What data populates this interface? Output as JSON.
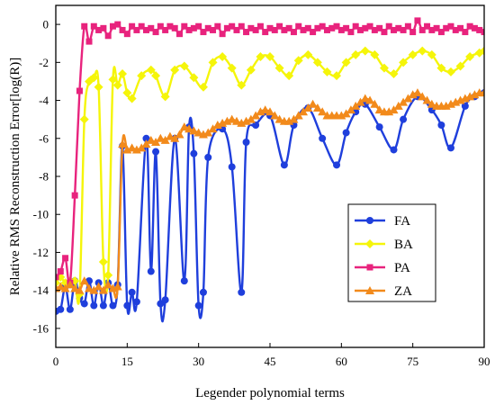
{
  "chart_data": {
    "type": "line",
    "xlabel": "Legender polynomial terms",
    "ylabel": "Relative RMS Reconstruction Error[log(R)]",
    "xlim": [
      0,
      90
    ],
    "ylim": [
      -17,
      1
    ],
    "xticks": [
      0,
      15,
      30,
      45,
      60,
      75,
      90
    ],
    "yticks": [
      0,
      -2,
      -4,
      -6,
      -8,
      -10,
      -12,
      -14,
      -16
    ],
    "legend_position": "lower-right",
    "series": [
      {
        "name": "FA",
        "color": "#1f3fdc",
        "marker": "circle",
        "points": [
          [
            0,
            -15.1
          ],
          [
            1,
            -15.0
          ],
          [
            2,
            -13.8
          ],
          [
            3,
            -15.0
          ],
          [
            4,
            -13.5
          ],
          [
            5,
            -14.4
          ],
          [
            6,
            -14.7
          ],
          [
            7,
            -13.5
          ],
          [
            8,
            -14.8
          ],
          [
            9,
            -13.6
          ],
          [
            10,
            -14.8
          ],
          [
            11,
            -13.6
          ],
          [
            12,
            -14.8
          ],
          [
            13,
            -13.7
          ],
          [
            14,
            -6.4
          ],
          [
            15,
            -14.8
          ],
          [
            16,
            -14.1
          ],
          [
            17,
            -14.6
          ],
          [
            19,
            -6.0
          ],
          [
            20,
            -13.0
          ],
          [
            21,
            -6.7
          ],
          [
            22,
            -14.7
          ],
          [
            23,
            -14.5
          ],
          [
            25,
            -6.0
          ],
          [
            27,
            -13.5
          ],
          [
            28,
            -5.4
          ],
          [
            29,
            -6.8
          ],
          [
            30,
            -14.8
          ],
          [
            31,
            -14.1
          ],
          [
            32,
            -7.0
          ],
          [
            35,
            -5.5
          ],
          [
            37,
            -7.5
          ],
          [
            39,
            -14.1
          ],
          [
            40,
            -6.2
          ],
          [
            42,
            -5.3
          ],
          [
            45,
            -4.8
          ],
          [
            48,
            -7.4
          ],
          [
            50,
            -5.3
          ],
          [
            53,
            -4.4
          ],
          [
            56,
            -6.0
          ],
          [
            59,
            -7.4
          ],
          [
            61,
            -5.7
          ],
          [
            63,
            -4.6
          ],
          [
            65,
            -4.2
          ],
          [
            68,
            -5.4
          ],
          [
            71,
            -6.6
          ],
          [
            73,
            -5.0
          ],
          [
            76,
            -3.8
          ],
          [
            79,
            -4.5
          ],
          [
            81,
            -5.3
          ],
          [
            83,
            -6.5
          ],
          [
            86,
            -4.3
          ],
          [
            88,
            -3.8
          ],
          [
            90,
            -3.6
          ]
        ]
      },
      {
        "name": "BA",
        "color": "#f5f50a",
        "marker": "diamond",
        "points": [
          [
            0,
            -13.6
          ],
          [
            1,
            -13.3
          ],
          [
            2,
            -13.6
          ],
          [
            3,
            -13.5
          ],
          [
            4,
            -13.5
          ],
          [
            5,
            -14.2
          ],
          [
            6,
            -5.0
          ],
          [
            7,
            -3.0
          ],
          [
            8,
            -2.8
          ],
          [
            9,
            -3.3
          ],
          [
            10,
            -12.5
          ],
          [
            11,
            -13.2
          ],
          [
            12,
            -2.9
          ],
          [
            13,
            -3.2
          ],
          [
            14,
            -2.6
          ],
          [
            15,
            -3.6
          ],
          [
            16,
            -3.9
          ],
          [
            18,
            -2.7
          ],
          [
            20,
            -2.4
          ],
          [
            21,
            -2.7
          ],
          [
            23,
            -3.8
          ],
          [
            25,
            -2.4
          ],
          [
            27,
            -2.2
          ],
          [
            29,
            -2.8
          ],
          [
            31,
            -3.3
          ],
          [
            33,
            -2.0
          ],
          [
            35,
            -1.7
          ],
          [
            37,
            -2.3
          ],
          [
            39,
            -3.2
          ],
          [
            41,
            -2.4
          ],
          [
            43,
            -1.7
          ],
          [
            45,
            -1.7
          ],
          [
            47,
            -2.3
          ],
          [
            49,
            -2.7
          ],
          [
            51,
            -1.9
          ],
          [
            53,
            -1.6
          ],
          [
            55,
            -2.0
          ],
          [
            57,
            -2.5
          ],
          [
            59,
            -2.7
          ],
          [
            61,
            -2.0
          ],
          [
            63,
            -1.6
          ],
          [
            65,
            -1.4
          ],
          [
            67,
            -1.6
          ],
          [
            69,
            -2.3
          ],
          [
            71,
            -2.6
          ],
          [
            73,
            -2.0
          ],
          [
            75,
            -1.6
          ],
          [
            77,
            -1.4
          ],
          [
            79,
            -1.6
          ],
          [
            81,
            -2.3
          ],
          [
            83,
            -2.5
          ],
          [
            85,
            -2.2
          ],
          [
            87,
            -1.7
          ],
          [
            89,
            -1.5
          ],
          [
            90,
            -1.4
          ]
        ]
      },
      {
        "name": "PA",
        "color": "#e8237d",
        "marker": "square",
        "points": [
          [
            0,
            -13.3
          ],
          [
            1,
            -13.0
          ],
          [
            2,
            -12.3
          ],
          [
            3,
            -13.6
          ],
          [
            4,
            -9.0
          ],
          [
            5,
            -3.5
          ],
          [
            6,
            -0.1
          ],
          [
            7,
            -0.9
          ],
          [
            8,
            -0.1
          ],
          [
            9,
            -0.3
          ],
          [
            10,
            -0.2
          ],
          [
            11,
            -0.6
          ],
          [
            12,
            -0.1
          ],
          [
            13,
            0.0
          ],
          [
            14,
            -0.3
          ],
          [
            15,
            -0.5
          ],
          [
            16,
            -0.1
          ],
          [
            17,
            -0.3
          ],
          [
            18,
            -0.1
          ],
          [
            19,
            -0.3
          ],
          [
            20,
            -0.2
          ],
          [
            21,
            -0.4
          ],
          [
            22,
            -0.1
          ],
          [
            23,
            -0.3
          ],
          [
            24,
            -0.1
          ],
          [
            25,
            -0.2
          ],
          [
            26,
            -0.5
          ],
          [
            27,
            -0.1
          ],
          [
            28,
            -0.3
          ],
          [
            29,
            -0.2
          ],
          [
            30,
            -0.1
          ],
          [
            31,
            -0.4
          ],
          [
            32,
            -0.2
          ],
          [
            33,
            -0.3
          ],
          [
            34,
            -0.1
          ],
          [
            35,
            -0.5
          ],
          [
            36,
            -0.2
          ],
          [
            37,
            -0.1
          ],
          [
            38,
            -0.3
          ],
          [
            39,
            -0.1
          ],
          [
            40,
            -0.4
          ],
          [
            41,
            -0.2
          ],
          [
            42,
            -0.3
          ],
          [
            43,
            -0.1
          ],
          [
            44,
            -0.4
          ],
          [
            45,
            -0.2
          ],
          [
            46,
            -0.3
          ],
          [
            47,
            -0.1
          ],
          [
            48,
            -0.3
          ],
          [
            49,
            -0.2
          ],
          [
            50,
            -0.4
          ],
          [
            51,
            -0.1
          ],
          [
            52,
            -0.3
          ],
          [
            53,
            -0.2
          ],
          [
            54,
            -0.4
          ],
          [
            55,
            -0.2
          ],
          [
            56,
            -0.1
          ],
          [
            57,
            -0.3
          ],
          [
            58,
            -0.2
          ],
          [
            59,
            -0.1
          ],
          [
            60,
            -0.3
          ],
          [
            61,
            -0.2
          ],
          [
            62,
            -0.4
          ],
          [
            63,
            -0.1
          ],
          [
            64,
            -0.3
          ],
          [
            65,
            -0.2
          ],
          [
            66,
            -0.1
          ],
          [
            67,
            -0.3
          ],
          [
            68,
            -0.2
          ],
          [
            69,
            -0.4
          ],
          [
            70,
            -0.1
          ],
          [
            71,
            -0.3
          ],
          [
            72,
            -0.2
          ],
          [
            73,
            -0.3
          ],
          [
            74,
            -0.1
          ],
          [
            75,
            -0.4
          ],
          [
            76,
            0.2
          ],
          [
            77,
            -0.3
          ],
          [
            78,
            -0.1
          ],
          [
            79,
            -0.3
          ],
          [
            80,
            -0.2
          ],
          [
            81,
            -0.4
          ],
          [
            82,
            -0.2
          ],
          [
            83,
            -0.1
          ],
          [
            84,
            -0.3
          ],
          [
            85,
            -0.2
          ],
          [
            86,
            -0.4
          ],
          [
            87,
            -0.1
          ],
          [
            88,
            -0.2
          ],
          [
            89,
            -0.3
          ],
          [
            90,
            -0.4
          ]
        ]
      },
      {
        "name": "ZA",
        "color": "#f28a1b",
        "marker": "triangle",
        "points": [
          [
            0,
            -13.9
          ],
          [
            1,
            -13.8
          ],
          [
            2,
            -13.9
          ],
          [
            3,
            -13.7
          ],
          [
            4,
            -13.9
          ],
          [
            5,
            -14.0
          ],
          [
            6,
            -13.5
          ],
          [
            7,
            -13.9
          ],
          [
            8,
            -14.0
          ],
          [
            9,
            -13.8
          ],
          [
            10,
            -14.0
          ],
          [
            11,
            -13.7
          ],
          [
            12,
            -13.9
          ],
          [
            13,
            -13.8
          ],
          [
            14,
            -6.3
          ],
          [
            15,
            -6.6
          ],
          [
            16,
            -6.5
          ],
          [
            17,
            -6.6
          ],
          [
            18,
            -6.5
          ],
          [
            19,
            -6.3
          ],
          [
            20,
            -6.1
          ],
          [
            21,
            -6.2
          ],
          [
            22,
            -6.0
          ],
          [
            23,
            -6.1
          ],
          [
            24,
            -5.9
          ],
          [
            25,
            -6.0
          ],
          [
            26,
            -5.8
          ],
          [
            27,
            -5.4
          ],
          [
            28,
            -5.5
          ],
          [
            29,
            -5.6
          ],
          [
            30,
            -5.7
          ],
          [
            31,
            -5.8
          ],
          [
            32,
            -5.7
          ],
          [
            33,
            -5.5
          ],
          [
            34,
            -5.3
          ],
          [
            35,
            -5.2
          ],
          [
            36,
            -5.1
          ],
          [
            37,
            -5.0
          ],
          [
            38,
            -5.1
          ],
          [
            39,
            -5.2
          ],
          [
            40,
            -5.1
          ],
          [
            41,
            -5.0
          ],
          [
            42,
            -4.8
          ],
          [
            43,
            -4.6
          ],
          [
            44,
            -4.5
          ],
          [
            45,
            -4.6
          ],
          [
            46,
            -4.8
          ],
          [
            47,
            -5.0
          ],
          [
            48,
            -5.1
          ],
          [
            49,
            -5.1
          ],
          [
            50,
            -5.0
          ],
          [
            51,
            -4.8
          ],
          [
            52,
            -4.6
          ],
          [
            53,
            -4.4
          ],
          [
            54,
            -4.2
          ],
          [
            55,
            -4.4
          ],
          [
            56,
            -4.6
          ],
          [
            57,
            -4.8
          ],
          [
            58,
            -4.8
          ],
          [
            59,
            -4.8
          ],
          [
            60,
            -4.8
          ],
          [
            61,
            -4.7
          ],
          [
            62,
            -4.5
          ],
          [
            63,
            -4.3
          ],
          [
            64,
            -4.1
          ],
          [
            65,
            -3.9
          ],
          [
            66,
            -4.0
          ],
          [
            67,
            -4.2
          ],
          [
            68,
            -4.5
          ],
          [
            69,
            -4.6
          ],
          [
            70,
            -4.6
          ],
          [
            71,
            -4.5
          ],
          [
            72,
            -4.3
          ],
          [
            73,
            -4.1
          ],
          [
            74,
            -3.9
          ],
          [
            75,
            -3.7
          ],
          [
            76,
            -3.6
          ],
          [
            77,
            -3.8
          ],
          [
            78,
            -4.0
          ],
          [
            79,
            -4.2
          ],
          [
            80,
            -4.3
          ],
          [
            81,
            -4.3
          ],
          [
            82,
            -4.3
          ],
          [
            83,
            -4.2
          ],
          [
            84,
            -4.1
          ],
          [
            85,
            -4.0
          ],
          [
            86,
            -3.9
          ],
          [
            87,
            -3.8
          ],
          [
            88,
            -3.7
          ],
          [
            89,
            -3.6
          ],
          [
            90,
            -3.6
          ]
        ]
      }
    ]
  }
}
